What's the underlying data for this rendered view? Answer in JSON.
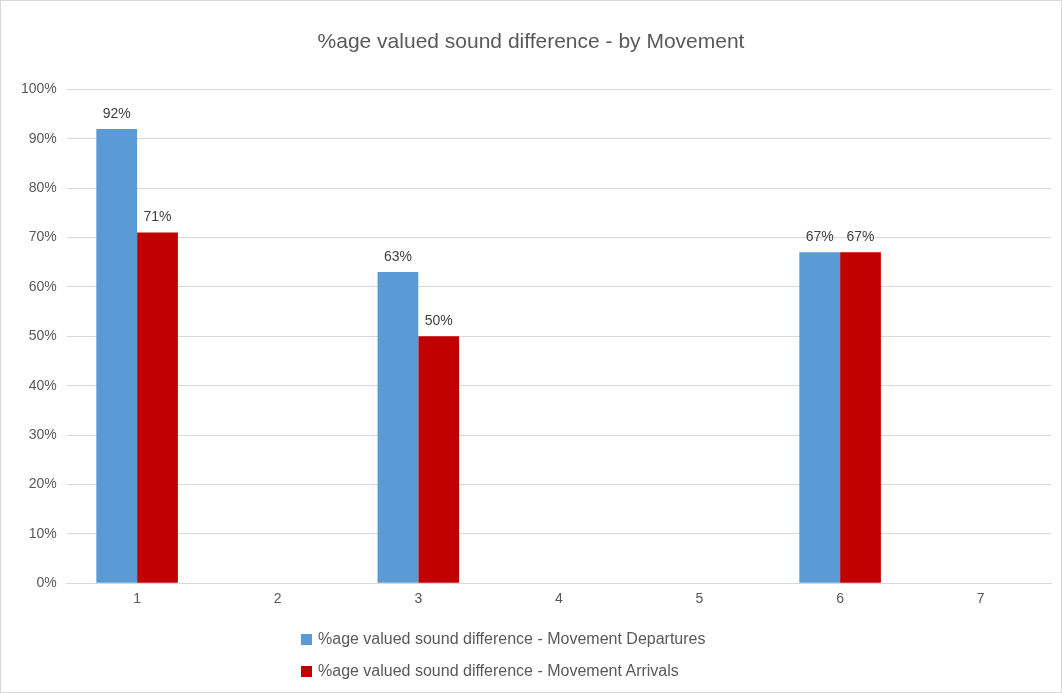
{
  "chart_data": {
    "type": "bar",
    "title": "%age valued sound difference - by Movement",
    "categories": [
      "1",
      "2",
      "3",
      "4",
      "5",
      "6",
      "7"
    ],
    "series": [
      {
        "name": "%age valued sound difference - Movement Departures",
        "color": "#5b9bd5",
        "values": [
          92,
          null,
          63,
          null,
          null,
          67,
          null
        ],
        "value_labels": [
          "92%",
          null,
          "63%",
          null,
          null,
          "67%",
          null
        ]
      },
      {
        "name": "%age valued sound difference - Movement Arrivals",
        "color": "#c00000",
        "values": [
          71,
          null,
          50,
          null,
          null,
          67,
          null
        ],
        "value_labels": [
          "71%",
          null,
          "50%",
          null,
          null,
          "67%",
          null
        ]
      }
    ],
    "ylim": [
      0,
      100
    ],
    "yticks": [
      {
        "value": 0,
        "label": "0%"
      },
      {
        "value": 10,
        "label": "10%"
      },
      {
        "value": 20,
        "label": "20%"
      },
      {
        "value": 30,
        "label": "30%"
      },
      {
        "value": 40,
        "label": "40%"
      },
      {
        "value": 50,
        "label": "50%"
      },
      {
        "value": 60,
        "label": "60%"
      },
      {
        "value": 70,
        "label": "70%"
      },
      {
        "value": 80,
        "label": "80%"
      },
      {
        "value": 90,
        "label": "90%"
      },
      {
        "value": 100,
        "label": "100%"
      }
    ],
    "grid": "y",
    "legend": "bottom"
  }
}
